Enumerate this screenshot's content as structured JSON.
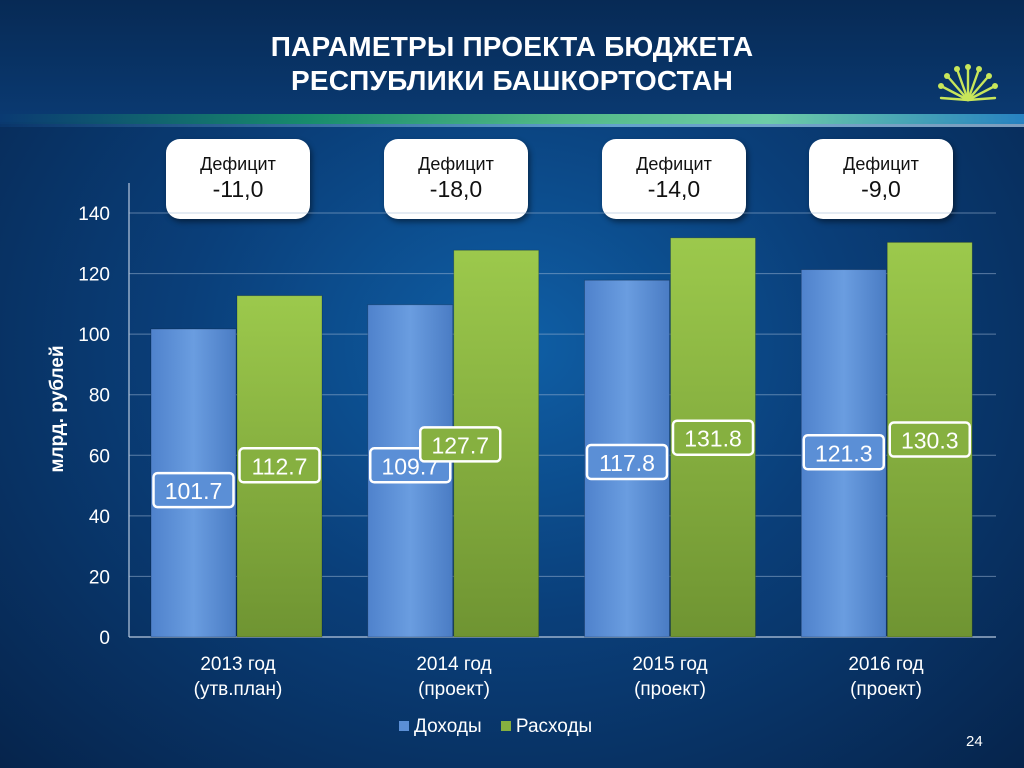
{
  "slide": {
    "title_line1": "ПАРАМЕТРЫ ПРОЕКТА БЮДЖЕТА",
    "title_line2": "РЕСПУБЛИКИ БАШКОРТОСТАН",
    "page_number": "24",
    "logo_icon": "kurai-flower-logo-icon"
  },
  "deficits": [
    {
      "label": "Дефицит",
      "value": "-11,0"
    },
    {
      "label": "Дефицит",
      "value": "-18,0"
    },
    {
      "label": "Дефицит",
      "value": "-14,0"
    },
    {
      "label": "Дефицит",
      "value": "-9,0"
    }
  ],
  "chart_data": {
    "type": "bar",
    "categories": [
      [
        "2013 год",
        "(утв.план)"
      ],
      [
        "2014 год",
        "(проект)"
      ],
      [
        "2015 год",
        "(проект)"
      ],
      [
        "2016 год",
        "(проект)"
      ]
    ],
    "series": [
      {
        "name": "Доходы",
        "values": [
          101.7,
          109.7,
          117.8,
          121.3
        ],
        "color": "#5b8fd6",
        "label_border": "#3b6fb8"
      },
      {
        "name": "Расходы",
        "values": [
          112.7,
          127.7,
          131.8,
          130.3
        ],
        "color": "#86b040",
        "label_border": "#5e7f24"
      }
    ],
    "ylabel": "млрд. рублей",
    "ylim": [
      0,
      140
    ],
    "yticks": [
      0,
      20,
      40,
      60,
      80,
      100,
      120,
      140
    ],
    "grid": true,
    "legend": "bottom"
  }
}
